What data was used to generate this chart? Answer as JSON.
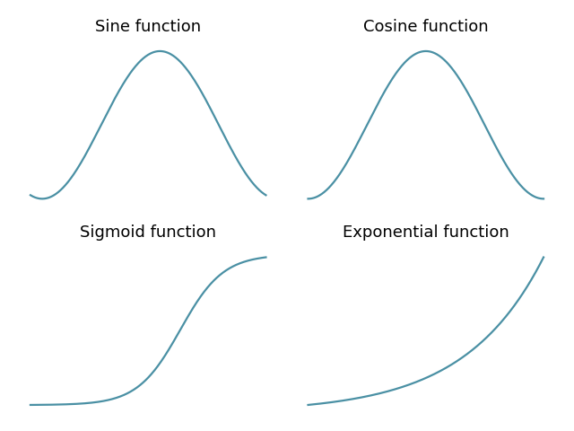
{
  "titles": [
    "Sine function",
    "Cosine function",
    "Sigmoid function",
    "Exponential function"
  ],
  "line_color": "#4a90a4",
  "line_width": 1.6,
  "title_fontsize": 13,
  "background_color": "#ffffff"
}
